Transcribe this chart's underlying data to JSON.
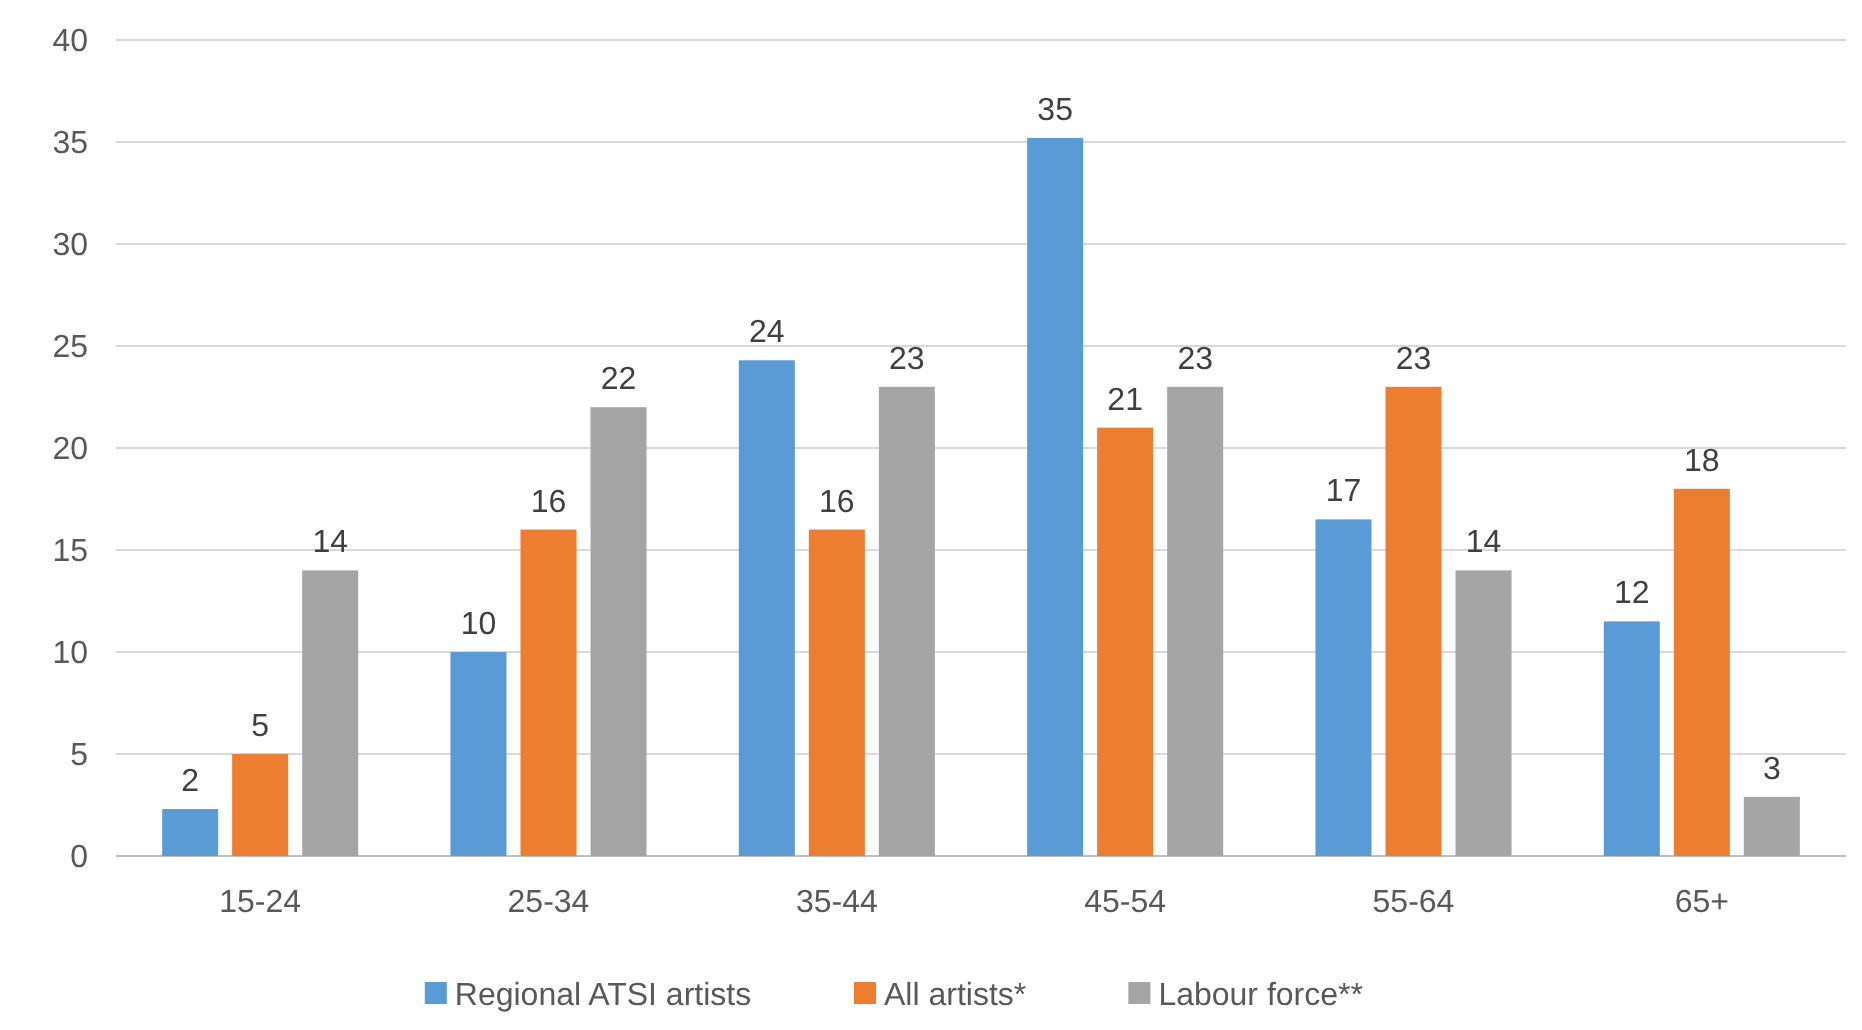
{
  "chart_data": {
    "type": "bar",
    "categories": [
      "15-24",
      "25-34",
      "35-44",
      "45-54",
      "55-64",
      "65+"
    ],
    "series": [
      {
        "name": "Regional ATSI artists",
        "color": "#5b9bd5",
        "values": [
          2.3,
          10,
          24.3,
          35.2,
          16.5,
          11.5
        ],
        "value_labels": [
          "2",
          "10",
          "24",
          "35",
          "17",
          "12"
        ]
      },
      {
        "name": "All artists*",
        "color": "#ed7d31",
        "values": [
          5,
          16,
          16,
          21,
          23,
          18
        ],
        "value_labels": [
          "5",
          "16",
          "16",
          "21",
          "23",
          "18"
        ]
      },
      {
        "name": "Labour force**",
        "color": "#a5a5a5",
        "values": [
          14,
          22,
          23,
          23,
          14,
          2.9
        ],
        "value_labels": [
          "14",
          "22",
          "23",
          "23",
          "14",
          "3"
        ]
      }
    ],
    "ylim": [
      0,
      40
    ],
    "yticks": [
      0,
      5,
      10,
      15,
      20,
      25,
      30,
      35,
      40
    ],
    "grid": "y",
    "legend": "bottom"
  }
}
